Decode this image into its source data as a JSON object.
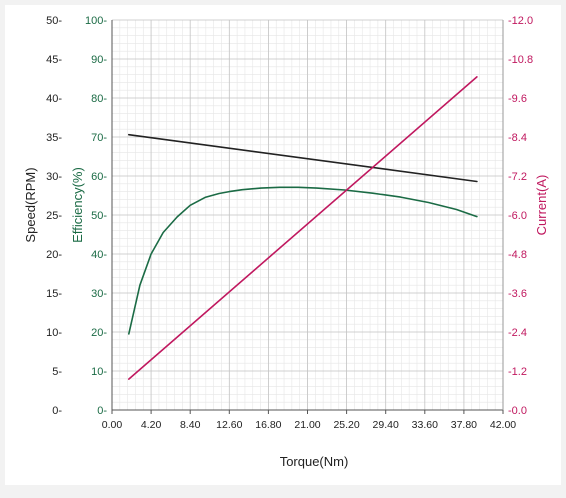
{
  "chart_data": {
    "type": "line",
    "xlabel": "Torque(Nm)",
    "x_ticks": [
      "0.00",
      "4.20",
      "8.40",
      "12.60",
      "16.80",
      "21.00",
      "25.20",
      "29.40",
      "33.60",
      "37.80",
      "42.00"
    ],
    "xlim": [
      0,
      42
    ],
    "axes": {
      "speed": {
        "label": "Speed(RPM)",
        "color": "#222222",
        "lim": [
          0,
          50
        ],
        "ticks": [
          "0-",
          "5-",
          "10-",
          "15-",
          "20-",
          "25-",
          "30-",
          "35-",
          "40-",
          "45-",
          "50-"
        ]
      },
      "efficiency": {
        "label": "Efficiency(%)",
        "color": "#1b6b45",
        "lim": [
          0,
          100
        ],
        "ticks": [
          "0-",
          "10-",
          "20-",
          "30-",
          "40-",
          "50-",
          "60-",
          "70-",
          "80-",
          "90-",
          "100-"
        ]
      },
      "current": {
        "label": "Current(A)",
        "color": "#c0185f",
        "lim": [
          0,
          -12
        ],
        "ticks": [
          "-0.0",
          "-1.2",
          "-2.4",
          "-3.6",
          "-4.8",
          "-6.0",
          "-7.2",
          "-8.4",
          "-9.6",
          "-10.8",
          "-12.0"
        ]
      }
    },
    "series": [
      {
        "axis": "speed",
        "color": "#222222",
        "x": [
          1.8,
          39.2
        ],
        "y": [
          35.3,
          29.3
        ]
      },
      {
        "axis": "efficiency",
        "color": "#1b6b45",
        "x": [
          1.8,
          3,
          4.2,
          5.5,
          7,
          8.4,
          10,
          11.5,
          12.6,
          14,
          16,
          18,
          20,
          22,
          25,
          28,
          31,
          34,
          37,
          39.2
        ],
        "y": [
          19.5,
          32,
          40,
          45.5,
          49.5,
          52.5,
          54.5,
          55.5,
          56,
          56.5,
          56.9,
          57.1,
          57.1,
          56.9,
          56.4,
          55.6,
          54.6,
          53.2,
          51.4,
          49.6
        ]
      },
      {
        "axis": "current",
        "color": "#c0185f",
        "x": [
          1.8,
          39.2
        ],
        "y": [
          -0.95,
          -10.25
        ]
      }
    ]
  }
}
